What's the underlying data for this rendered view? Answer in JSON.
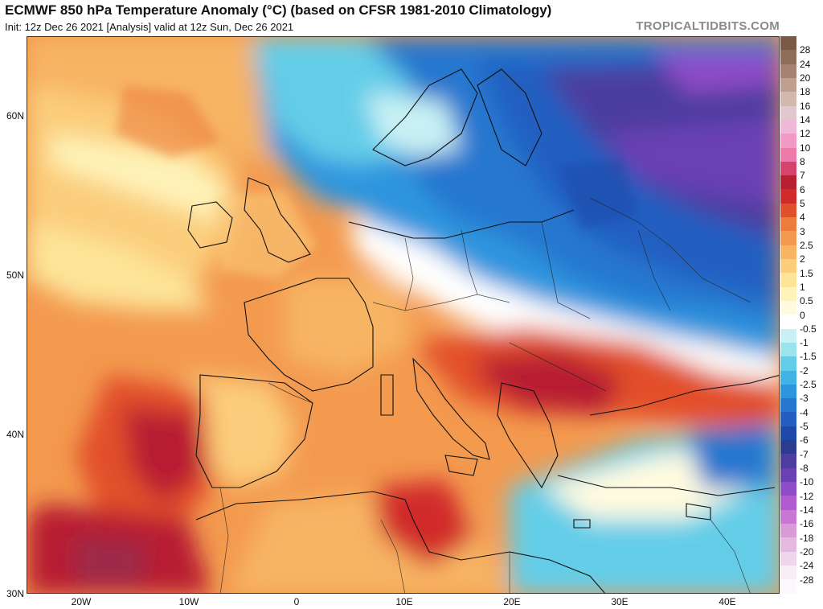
{
  "header": {
    "title": "ECMWF 850 hPa Temperature Anomaly (°C) (based on CFSR 1981-2010 Climatology)",
    "subtitle": "Init: 12z Dec 26 2021   [Analysis]   valid at 12z Sun, Dec 26 2021",
    "brand": "TROPICALTIDBITS.COM"
  },
  "map": {
    "lat_ticks": [
      "60N",
      "50N",
      "40N",
      "30N"
    ],
    "lon_ticks": [
      "20W",
      "10W",
      "0",
      "10E",
      "20E",
      "30E",
      "40E"
    ],
    "lat_range": [
      30,
      65
    ],
    "lon_range": [
      -25,
      45
    ]
  },
  "colorbar": {
    "labels": [
      "28",
      "24",
      "20",
      "18",
      "16",
      "14",
      "12",
      "10",
      "8",
      "7",
      "6",
      "5",
      "4",
      "3",
      "2.5",
      "2",
      "1.5",
      "1",
      "0.5",
      "0",
      "-0.5",
      "-1",
      "-1.5",
      "-2",
      "-2.5",
      "-3",
      "-4",
      "-5",
      "-6",
      "-7",
      "-8",
      "-10",
      "-12",
      "-14",
      "-16",
      "-18",
      "-20",
      "-24",
      "-28"
    ],
    "colors": [
      "#7a5a45",
      "#8e6d5b",
      "#a58272",
      "#bf9f8e",
      "#d3b8ad",
      "#e1c8cf",
      "#f0b8d8",
      "#f19ac8",
      "#ee7aa9",
      "#d6446d",
      "#b81f31",
      "#d12a2a",
      "#e24f2b",
      "#ec7b3c",
      "#f39a4f",
      "#f7b463",
      "#fbcd7c",
      "#fde498",
      "#fef3b8",
      "#fffbe0",
      "#ffffff",
      "#c9f1f4",
      "#9be4ee",
      "#63cde8",
      "#3fb3e6",
      "#2d95de",
      "#2877cf",
      "#245ec1",
      "#1f49a8",
      "#2b3b8e",
      "#4c3d9f",
      "#6a41b5",
      "#8f4cc8",
      "#b05bd1",
      "#c877d4",
      "#d99ad7",
      "#e6b9e0",
      "#efd6ec",
      "#f8eef6",
      "#fdf8fb"
    ]
  }
}
